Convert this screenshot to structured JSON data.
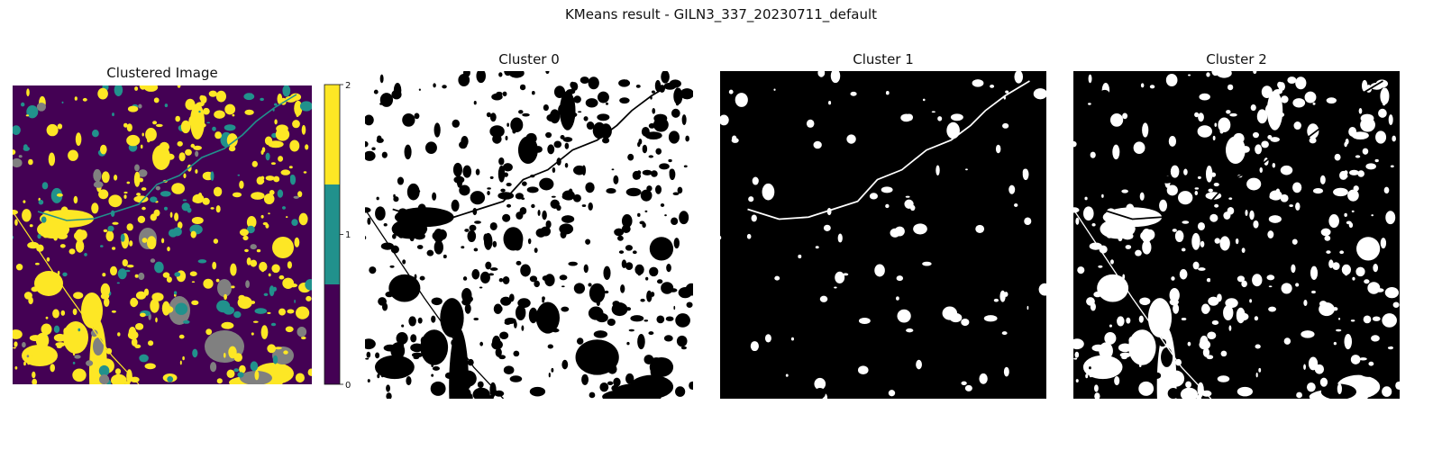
{
  "suptitle": "KMeans result - GILN3_337_20230711_default",
  "panels": [
    {
      "title": "Clustered Image"
    },
    {
      "title": "Cluster 0"
    },
    {
      "title": "Cluster 1"
    },
    {
      "title": "Cluster 2"
    }
  ],
  "colors": {
    "cluster_0": "#440154",
    "cluster_1": "#21918c",
    "cluster_2": "#fde725",
    "nodata": "#808080",
    "mask_on": "#ffffff",
    "mask_off": "#000000"
  },
  "chart_data": [
    {
      "type": "heatmap",
      "title": "Clustered Image",
      "description_values": [
        0,
        1,
        2
      ],
      "colormap": "viridis",
      "colorbar": {
        "ticks": [
          "0",
          "1",
          "2"
        ],
        "range": [
          0,
          2
        ]
      }
    },
    {
      "type": "heatmap",
      "title": "Cluster 0",
      "colormap": "gray",
      "values": [
        0,
        1
      ]
    },
    {
      "type": "heatmap",
      "title": "Cluster 1",
      "colormap": "gray",
      "values": [
        0,
        1
      ]
    },
    {
      "type": "heatmap",
      "title": "Cluster 2",
      "colormap": "gray",
      "values": [
        0,
        1
      ]
    }
  ]
}
